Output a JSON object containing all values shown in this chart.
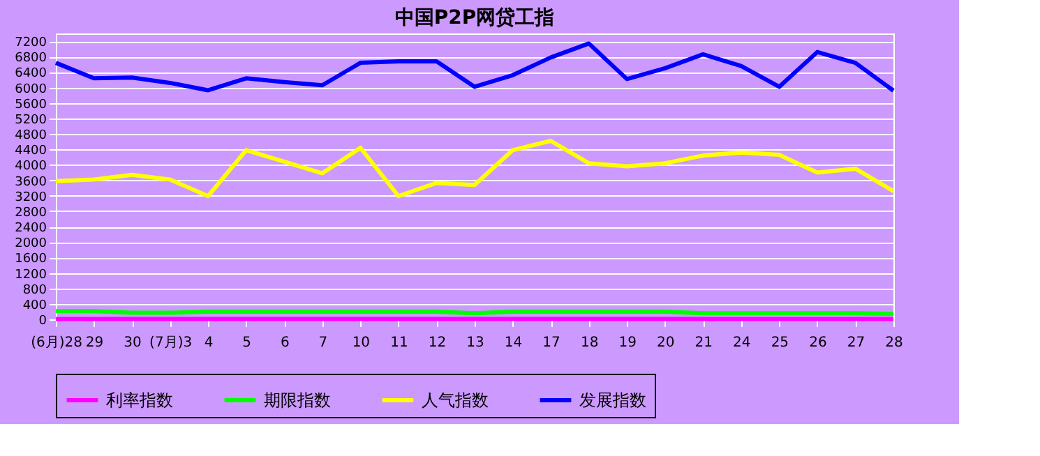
{
  "chart_data": {
    "type": "line",
    "title": "中国P2P网贷工指",
    "categories": [
      "(6月)28",
      "29",
      "30",
      "(7月)3",
      "4",
      "5",
      "6",
      "7",
      "10",
      "11",
      "12",
      "13",
      "14",
      "17",
      "18",
      "19",
      "20",
      "21",
      "24",
      "25",
      "26",
      "27",
      "28"
    ],
    "series": [
      {
        "name": "利率指数",
        "color": "#ff00ff",
        "values": [
          10,
          10,
          10,
          10,
          10,
          10,
          10,
          10,
          10,
          10,
          10,
          10,
          10,
          10,
          10,
          10,
          10,
          10,
          10,
          10,
          10,
          10,
          10
        ]
      },
      {
        "name": "期限指数",
        "color": "#00ff00",
        "values": [
          210,
          210,
          170,
          170,
          200,
          200,
          200,
          200,
          200,
          200,
          200,
          160,
          200,
          200,
          200,
          200,
          200,
          160,
          160,
          160,
          160,
          160,
          140
        ]
      },
      {
        "name": "人气指数",
        "color": "#ffff00",
        "values": [
          3580,
          3620,
          3740,
          3620,
          3190,
          4380,
          4080,
          3780,
          4440,
          3190,
          3530,
          3480,
          4380,
          4620,
          4040,
          3960,
          4040,
          4240,
          4320,
          4260,
          3800,
          3900,
          3320
        ]
      },
      {
        "name": "发展指数",
        "color": "#0000ff",
        "values": [
          6640,
          6240,
          6260,
          6120,
          5930,
          6240,
          6140,
          6060,
          6640,
          6680,
          6680,
          6020,
          6320,
          6780,
          7140,
          6220,
          6500,
          6860,
          6560,
          6020,
          6920,
          6640,
          5920
        ]
      }
    ],
    "ylim": [
      0,
      7400
    ],
    "yticks": [
      0,
      400,
      800,
      1200,
      1600,
      2000,
      2400,
      2800,
      3200,
      3600,
      4000,
      4400,
      4800,
      5200,
      5600,
      6000,
      6400,
      6800,
      7200
    ],
    "grid": "y",
    "legend": "bottom",
    "line_style": "solid"
  }
}
